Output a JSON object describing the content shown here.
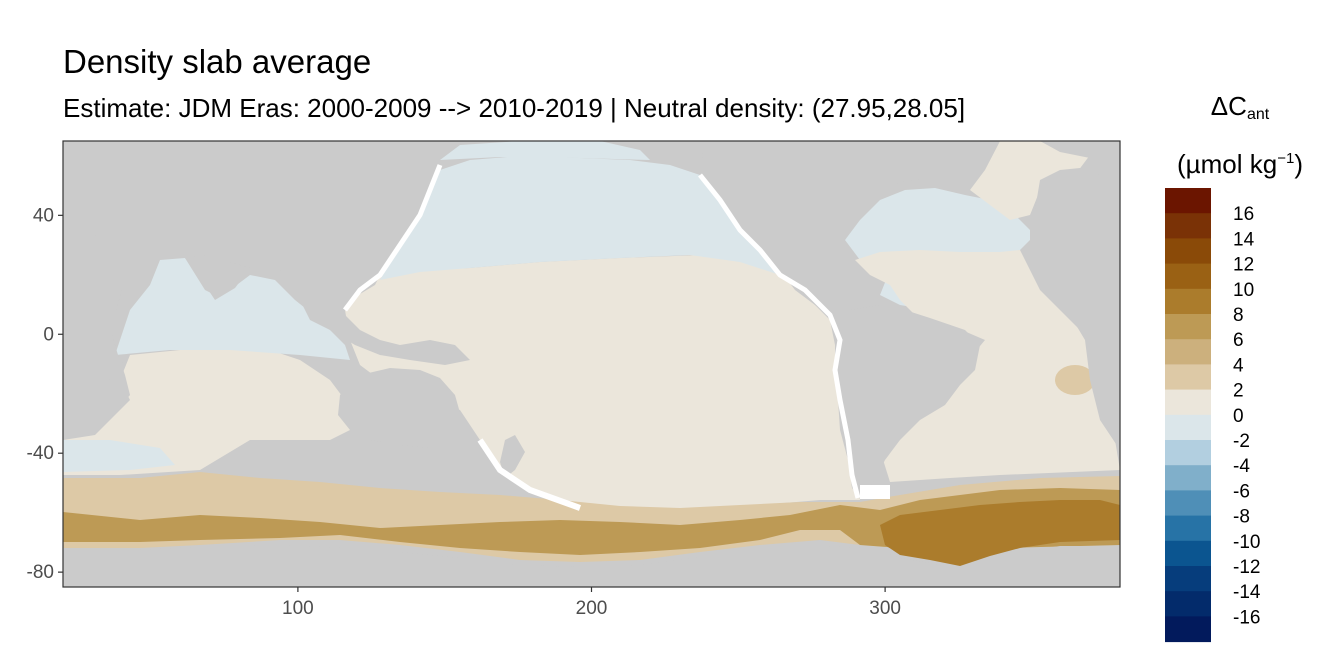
{
  "title": "Density slab average",
  "subtitle": "Estimate: JDM Eras: 2000-2009 --> 2010-2019 | Neutral density: (27.95,28.05]",
  "legend": {
    "title_line1": "ΔC",
    "title_sub": "ant",
    "title_line2_pre": "(µmol kg",
    "title_line2_sup": "−1",
    "title_line2_post": ")",
    "bins": [
      {
        "label": "16",
        "color": "#6b1500"
      },
      {
        "label": "14",
        "color": "#7a3206"
      },
      {
        "label": "12",
        "color": "#8a4a08"
      },
      {
        "label": "10",
        "color": "#9a6114"
      },
      {
        "label": "8",
        "color": "#ab7c2c"
      },
      {
        "label": "6",
        "color": "#bd9a55"
      },
      {
        "label": "4",
        "color": "#ccb07d"
      },
      {
        "label": "2",
        "color": "#ddc9a6"
      },
      {
        "label": "0",
        "color": "#ebe6db"
      },
      {
        "label": "-2",
        "color": "#dbe6ea"
      },
      {
        "label": "-4",
        "color": "#b2cfe0"
      },
      {
        "label": "-6",
        "color": "#80afca"
      },
      {
        "label": "-8",
        "color": "#4f8fb7"
      },
      {
        "label": "-10",
        "color": "#2773a6"
      },
      {
        "label": "-12",
        "color": "#0b5590"
      },
      {
        "label": "-14",
        "color": "#063d7c"
      },
      {
        "label": "-16",
        "color": "#032b6b"
      },
      {
        "label": "",
        "color": "#021a5c"
      }
    ]
  },
  "axes": {
    "x_ticks": [
      100,
      200,
      300
    ],
    "y_ticks": [
      40,
      0,
      -40,
      -80
    ],
    "x_range": [
      20,
      380
    ],
    "y_range": [
      -85,
      65
    ]
  },
  "colors": {
    "land": "#cbcbcb",
    "no_data": "#ffffff",
    "ocean_pos_low": "#ebe6db",
    "ocean_neg_low": "#dbe6ea",
    "ocean_pos_mid": "#ddc9a6",
    "ocean_pos_high": "#ab7c2c"
  }
}
